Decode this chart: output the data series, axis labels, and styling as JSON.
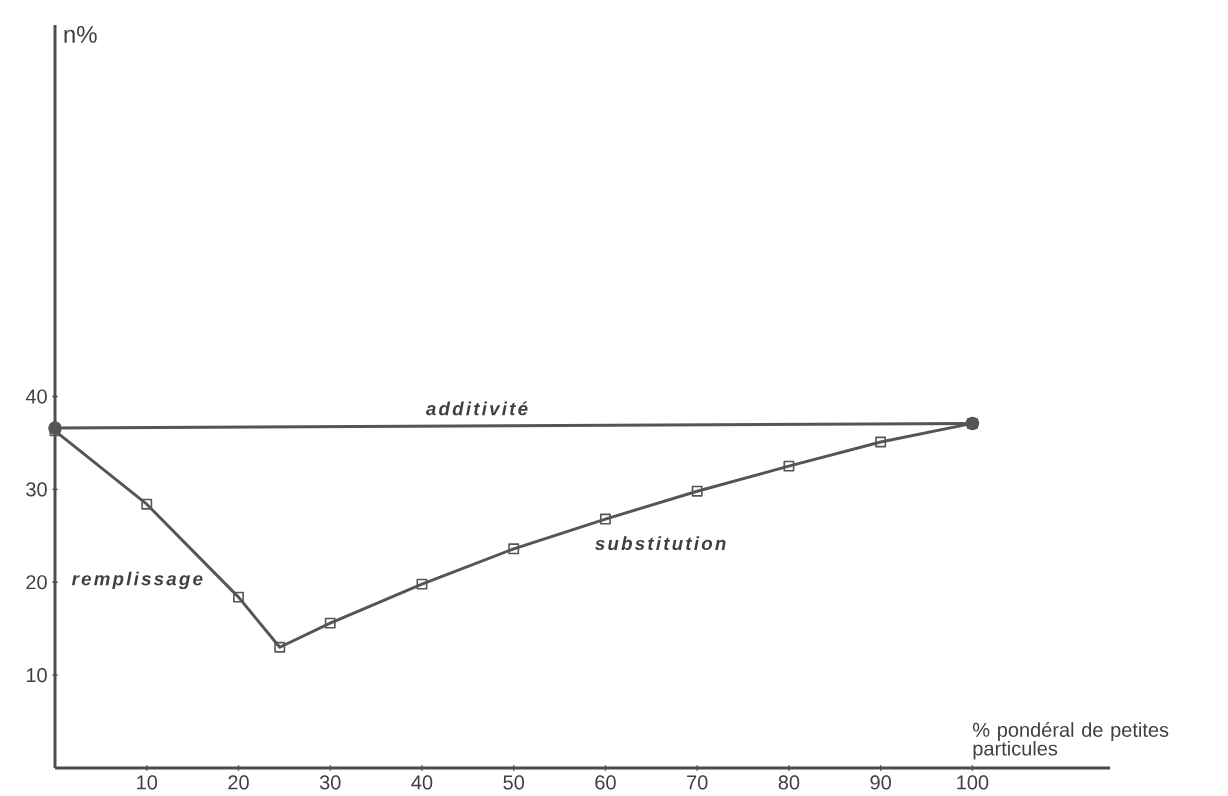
{
  "chart_data": {
    "type": "line",
    "xlabel": "% pondéral de petites particules",
    "ylabel": "n%",
    "xlim": [
      0,
      115
    ],
    "ylim": [
      0,
      80
    ],
    "xticks": [
      10,
      20,
      30,
      40,
      50,
      60,
      70,
      80,
      90,
      100
    ],
    "yticks": [
      10,
      20,
      30,
      40
    ],
    "line_style": "solid",
    "series": [
      {
        "x": [
          0,
          100
        ],
        "values": [
          36.6,
          37.1
        ],
        "color": "#555555",
        "marker": "circle"
      },
      {
        "x": [
          0,
          10,
          20,
          24.5,
          30,
          40,
          50,
          60,
          70,
          80,
          90,
          100
        ],
        "values": [
          36.3,
          28.4,
          18.4,
          13.0,
          15.6,
          19.8,
          23.6,
          26.8,
          29.8,
          32.5,
          35.1,
          37.1
        ],
        "color": "#555555",
        "marker": "square"
      }
    ],
    "annotations": [
      "additivité",
      "remplissage",
      "substitution"
    ]
  }
}
